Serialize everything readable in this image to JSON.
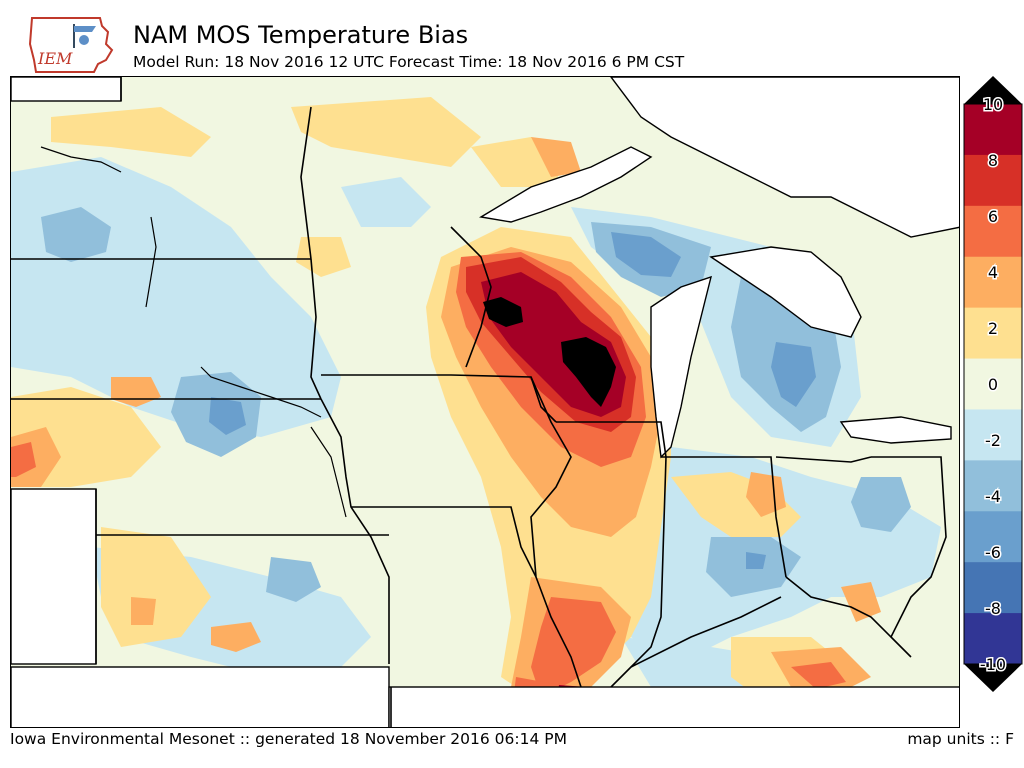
{
  "header": {
    "logo_text": "IEM",
    "title": "NAM MOS Temperature Bias",
    "subtitle": "Model Run: 18 Nov 2016 12 UTC Forecast Time: 18 Nov 2016 6 PM CST"
  },
  "footer": {
    "credit": "Iowa Environmental Mesonet :: generated 18 November 2016 06:14 PM",
    "units": "map units :: F"
  },
  "colorbar": {
    "ticks": [
      "10",
      "8",
      "6",
      "4",
      "2",
      "0",
      "-2",
      "-4",
      "-6",
      "-8",
      "-10"
    ],
    "colors": [
      "#a50026",
      "#d73027",
      "#f46d43",
      "#fdae61",
      "#fee090",
      "#f1f7e1",
      "#c6e6f1",
      "#91bfdb",
      "#6a9fcd",
      "#4575b4",
      "#313695"
    ],
    "over_color": "#000000",
    "under_color": "#000000"
  },
  "map": {
    "background_color": "#f1f7e1",
    "water_color": "#ffffff",
    "variable": "temperature bias"
  }
}
